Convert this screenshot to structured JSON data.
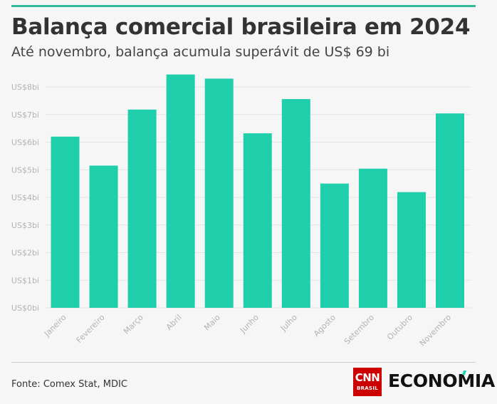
{
  "header": {
    "title": "Balança comercial brasileira em 2024",
    "subtitle": "Até novembro, balança acumula superávit de US$ 69 bi"
  },
  "footer": {
    "source": "Fonte: Comex Stat, MDIC",
    "logo_cnn": "CNN",
    "logo_brasil": "BRASIL",
    "logo_word": "ECONOMIA"
  },
  "colors": {
    "bar": "#1fcfab",
    "accent_rule": "#33b99a",
    "grid": "#e4e4e4",
    "tick_text": "#b3b3b3",
    "logo_red": "#cc0000"
  },
  "chart_data": {
    "type": "bar",
    "categories": [
      "Janeiro",
      "Fevereiro",
      "Março",
      "Abril",
      "Maio",
      "Junho",
      "Julho",
      "Agosto",
      "Setembro",
      "Outubro",
      "Novembro"
    ],
    "values": [
      6.2,
      5.15,
      7.18,
      8.45,
      8.3,
      6.32,
      7.56,
      4.5,
      5.04,
      4.19,
      7.04
    ],
    "unit": "bi US$",
    "y_ticks": [
      "US$0bi",
      "US$1bi",
      "US$2bi",
      "US$3bi",
      "US$4bi",
      "US$5bi",
      "US$6bi",
      "US$7bi",
      "US$8bi"
    ],
    "ylim": [
      0,
      8.7
    ],
    "grid": true,
    "legend": "none",
    "title": "Balança comercial brasileira em 2024",
    "subtitle": "Até novembro, balança acumula superávit de US$ 69 bi"
  }
}
